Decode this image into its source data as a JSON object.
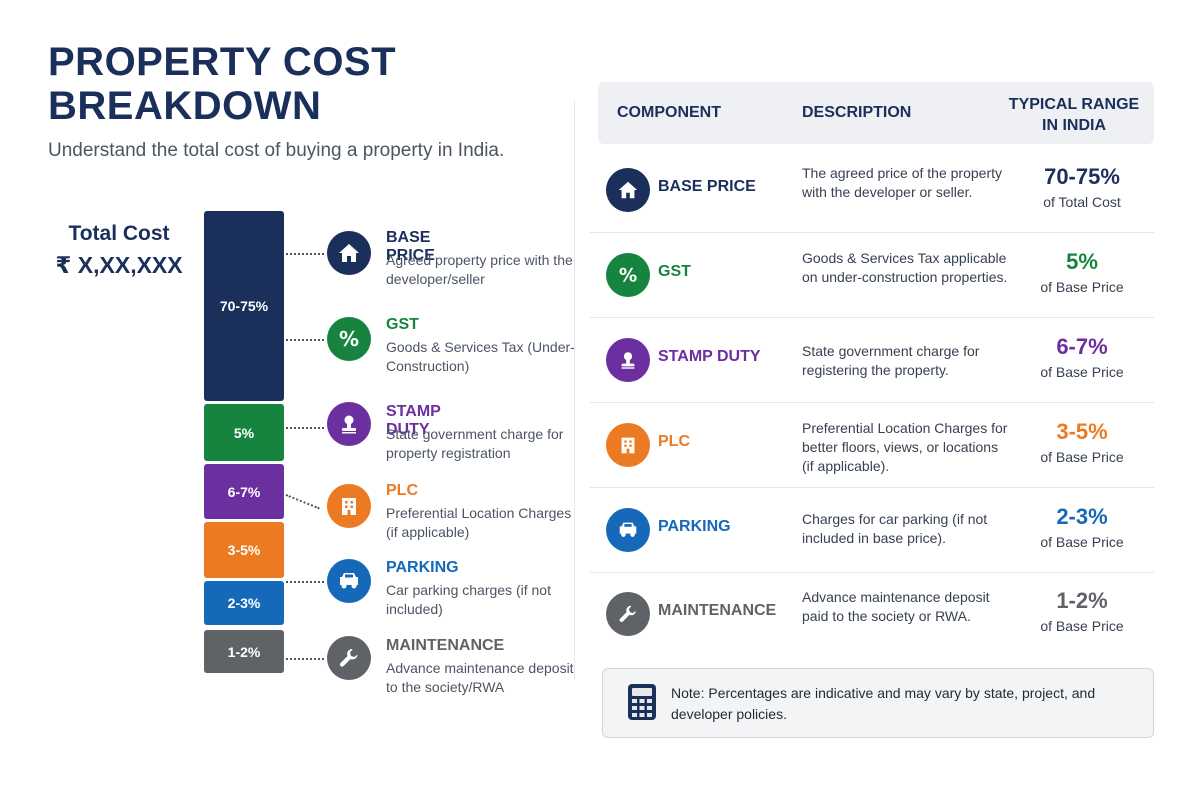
{
  "header": {
    "title": "PROPERTY COST BREAKDOWN",
    "subtitle": "Understand the total cost of buying a property in India."
  },
  "total": {
    "label": "Total Cost",
    "value": "₹ X,XX,XXX"
  },
  "stack": {
    "segments": [
      {
        "label": "70-75%",
        "color": "#1b2f5b"
      },
      {
        "label": "5%",
        "color": "#16843e"
      },
      {
        "label": "6-7%",
        "color": "#6b2fa0"
      },
      {
        "label": "3-5%",
        "color": "#ec7a22"
      },
      {
        "label": "2-3%",
        "color": "#1569b8"
      },
      {
        "label": "1-2%",
        "color": "#5f6368"
      }
    ]
  },
  "legend": [
    {
      "title": "BASE PRICE",
      "desc": "Agreed property price with the developer/seller",
      "color": "#1b2f5b",
      "icon": "home-icon"
    },
    {
      "title": "GST",
      "desc": "Goods & Services Tax (Under-Construction)",
      "color": "#16843e",
      "icon": "percent-icon"
    },
    {
      "title": "STAMP DUTY",
      "desc": "State government charge for property registration",
      "color": "#6b2fa0",
      "icon": "stamp-icon"
    },
    {
      "title": "PLC",
      "desc": "Preferential Location Charges (if applicable)",
      "color": "#ec7a22",
      "icon": "building-icon"
    },
    {
      "title": "PARKING",
      "desc": "Car parking charges (if not included)",
      "color": "#1569b8",
      "icon": "car-icon"
    },
    {
      "title": "MAINTENANCE",
      "desc": "Advance maintenance deposit to the society/RWA",
      "color": "#5f6368",
      "icon": "wrench-icon"
    }
  ],
  "table": {
    "headers": {
      "component": "COMPONENT",
      "description": "DESCRIPTION",
      "range": "TYPICAL RANGE IN INDIA"
    },
    "rows": [
      {
        "name": "BASE PRICE",
        "desc": "The agreed price of the property with the developer or seller.",
        "range": "70-75%",
        "of": "of Total Cost",
        "color": "#1b2f5b"
      },
      {
        "name": "GST",
        "desc": "Goods & Services Tax applicable on under-construction properties.",
        "range": "5%",
        "of": "of Base Price",
        "color": "#16843e"
      },
      {
        "name": "STAMP DUTY",
        "desc": "State government charge for registering the property.",
        "range": "6-7%",
        "of": "of Base Price",
        "color": "#6b2fa0"
      },
      {
        "name": "PLC",
        "desc": "Preferential Location Charges for better floors, views, or locations (if applicable).",
        "range": "3-5%",
        "of": "of Base Price",
        "color": "#ec7a22"
      },
      {
        "name": "PARKING",
        "desc": "Charges for car parking (if not included in base price).",
        "range": "2-3%",
        "of": "of Base Price",
        "color": "#1569b8"
      },
      {
        "name": "MAINTENANCE",
        "desc": "Advance maintenance deposit paid to the society or RWA.",
        "range": "1-2%",
        "of": "of Base Price",
        "color": "#5f6368"
      }
    ]
  },
  "note": {
    "text": "Note: Percentages are indicative and may vary by state, project, and developer policies.",
    "icon": "calculator-icon"
  }
}
